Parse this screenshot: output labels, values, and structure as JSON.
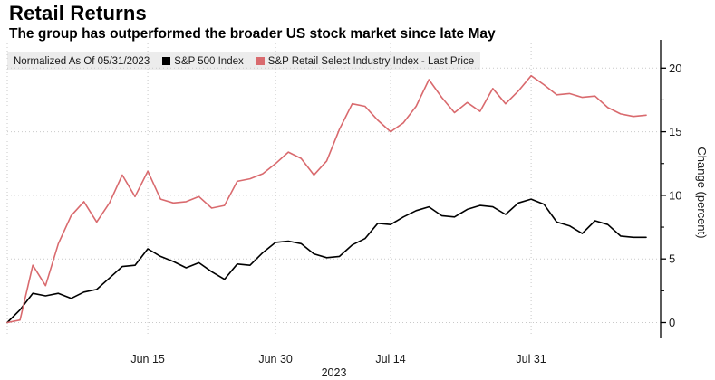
{
  "header": {
    "title": "Retail Returns",
    "subtitle": "The group has outperformed the broader US stock market since late May"
  },
  "legend": {
    "normalized_label": "Normalized As Of 05/31/2023",
    "series": [
      {
        "label": "S&P 500 Index",
        "color": "#000000"
      },
      {
        "label": "S&P Retail Select Industry Index - Last Price",
        "color": "#d96a6e"
      }
    ]
  },
  "axes": {
    "y_label": "Change (percent)",
    "y_ticks": [
      0,
      5,
      10,
      15,
      20
    ],
    "y_minor_ticks": [
      2.5,
      7.5,
      12.5,
      17.5
    ],
    "x_tick_labels": [
      "Jun 15",
      "Jun 30",
      "Jul 14",
      "Jul 31"
    ],
    "x_year": "2023"
  },
  "colors": {
    "grid": "#c9c9c9",
    "axis": "#000000",
    "legend_bg": "#ececec",
    "series_black": "#000000",
    "series_red": "#d96a6e"
  },
  "chart_data": {
    "type": "line",
    "title": "Retail Returns",
    "subtitle": "The group has outperformed the broader US stock market since late May",
    "xlabel": "2023",
    "ylabel": "Change (percent)",
    "ylim": [
      0,
      20
    ],
    "grid": true,
    "legend_position": "top",
    "x_note": "Daily trading days, normalized as of 05/31/2023 through ~08/11/2023; index 0 = 05/31/2023",
    "x_tick_labels": [
      "Jun 15",
      "Jun 30",
      "Jul 14",
      "Jul 31"
    ],
    "x_tick_indices": [
      11,
      21,
      30,
      41
    ],
    "series": [
      {
        "name": "S&P 500 Index",
        "color": "#000000",
        "values": [
          0.0,
          1.0,
          2.3,
          2.1,
          2.3,
          1.9,
          2.4,
          2.6,
          3.5,
          4.4,
          4.5,
          5.8,
          5.2,
          4.8,
          4.3,
          4.7,
          4.0,
          3.4,
          4.6,
          4.5,
          5.5,
          6.3,
          6.4,
          6.2,
          5.4,
          5.1,
          5.2,
          6.1,
          6.6,
          7.8,
          7.7,
          8.3,
          8.8,
          9.1,
          8.4,
          8.3,
          8.9,
          9.2,
          9.1,
          8.5,
          9.4,
          9.7,
          9.3,
          7.9,
          7.6,
          7.0,
          8.0,
          7.7,
          6.8,
          6.7,
          6.7
        ]
      },
      {
        "name": "S&P Retail Select Industry Index - Last Price",
        "color": "#d96a6e",
        "values": [
          0.0,
          0.2,
          4.5,
          2.9,
          6.2,
          8.4,
          9.5,
          7.9,
          9.4,
          11.6,
          9.9,
          11.9,
          9.7,
          9.4,
          9.5,
          9.9,
          9.0,
          9.2,
          11.1,
          11.3,
          11.7,
          12.5,
          13.4,
          12.9,
          11.6,
          12.7,
          15.2,
          17.2,
          17.0,
          15.9,
          15.0,
          15.7,
          17.0,
          19.1,
          17.7,
          16.5,
          17.3,
          16.6,
          18.4,
          17.2,
          18.2,
          19.4,
          18.7,
          17.9,
          18.0,
          17.7,
          17.8,
          16.9,
          16.4,
          16.2,
          16.3
        ]
      }
    ]
  }
}
